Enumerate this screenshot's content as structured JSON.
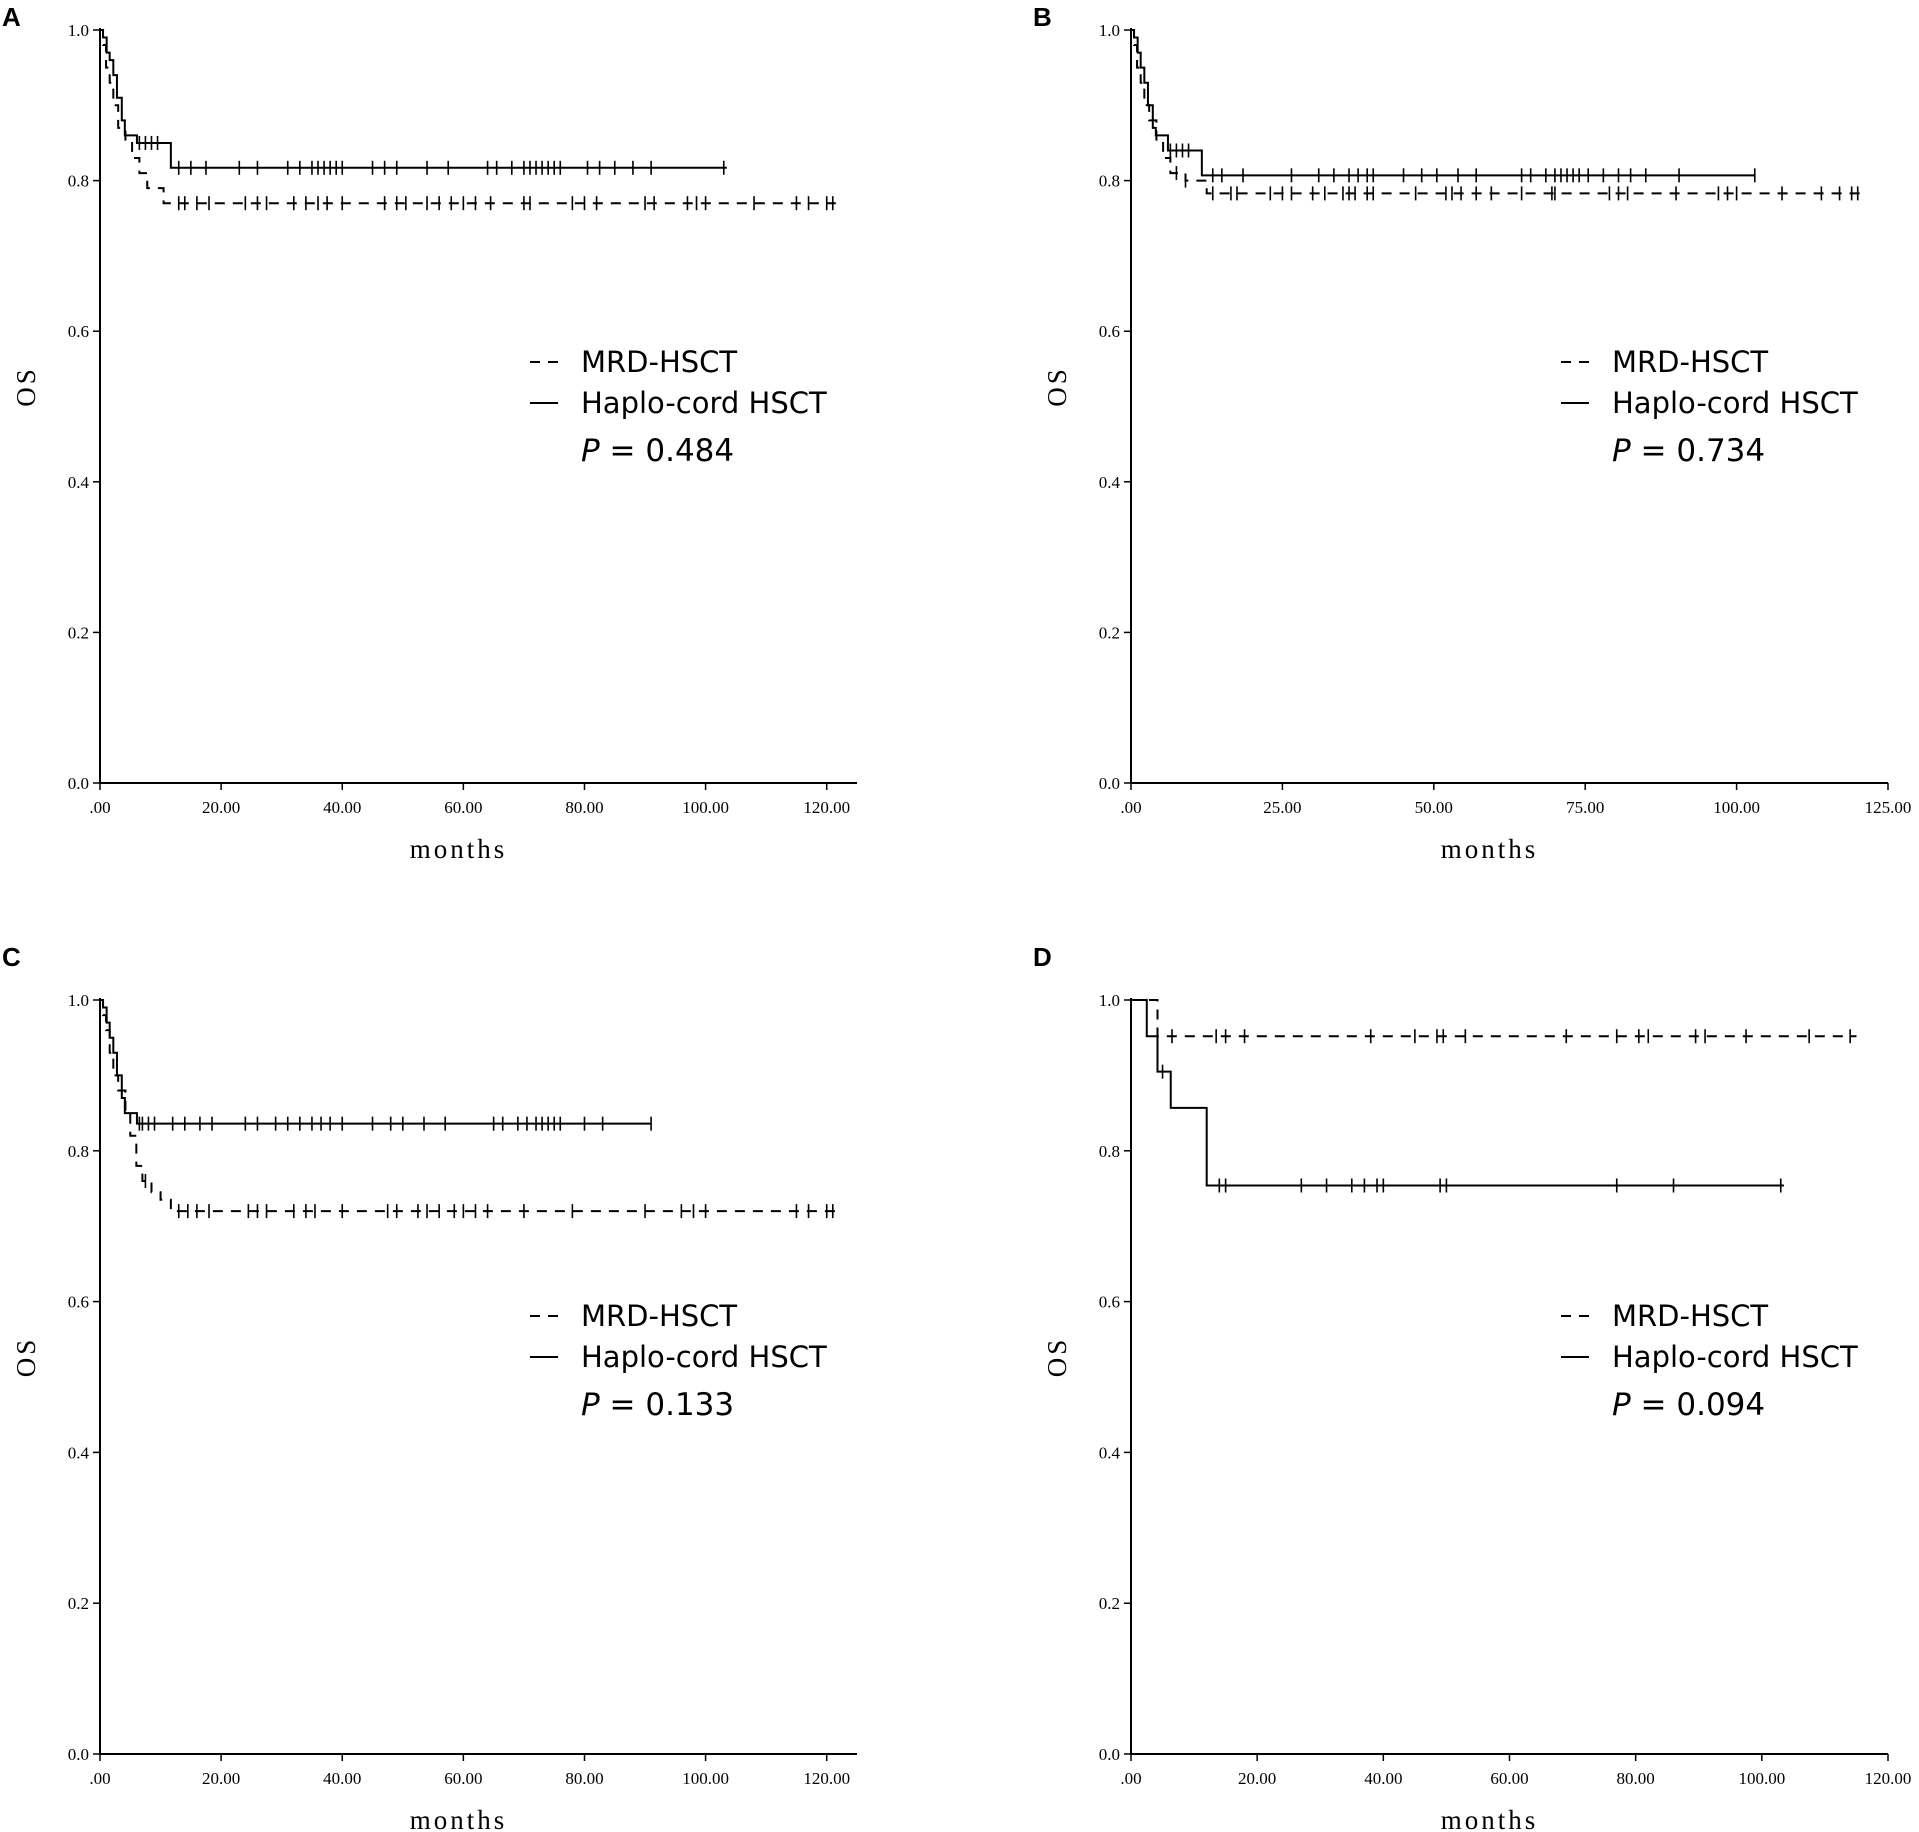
{
  "chart_data": [
    {
      "panel": "A",
      "type": "line",
      "ylabel": "OS",
      "xlabel": "months",
      "xlim": [
        0,
        125
      ],
      "ylim": [
        0,
        1
      ],
      "x_ticks": [
        0,
        20,
        40,
        60,
        80,
        100,
        120
      ],
      "x_tick_labels": [
        ".00",
        "20.00",
        "40.00",
        "60.00",
        "80.00",
        "100.00",
        "120.00"
      ],
      "y_ticks": [
        0,
        0.2,
        0.4,
        0.6,
        0.8,
        1.0
      ],
      "y_tick_labels": [
        "0.0",
        "0.2",
        "0.4",
        "0.6",
        "0.8",
        "1.0"
      ],
      "legend_position": "center-right",
      "p_label": "P",
      "p_value_text": " = 0.484",
      "series": [
        {
          "name": "MRD-HSCT",
          "style": "dashed",
          "steps": [
            [
              0,
              1.0
            ],
            [
              0.5,
              0.98
            ],
            [
              1,
              0.95
            ],
            [
              1.6,
              0.93
            ],
            [
              2.2,
              0.9
            ],
            [
              3,
              0.87
            ],
            [
              4.2,
              0.85
            ],
            [
              5.3,
              0.83
            ],
            [
              6.5,
              0.81
            ],
            [
              7.8,
              0.79
            ],
            [
              10.5,
              0.77
            ]
          ],
          "end": 121.5,
          "censored": [
            13,
            14,
            16,
            18,
            24,
            26,
            27.5,
            32,
            34,
            36,
            37.5,
            40,
            47,
            49,
            50.5,
            54,
            56,
            58,
            60,
            62,
            64.5,
            70,
            71,
            78,
            80,
            82,
            90,
            91.5,
            97,
            98.5,
            100,
            108,
            115,
            117,
            120,
            121
          ]
        },
        {
          "name": "Haplo-cord HSCT",
          "style": "solid",
          "steps": [
            [
              0,
              1.0
            ],
            [
              0.5,
              0.99
            ],
            [
              1.1,
              0.97
            ],
            [
              1.6,
              0.96
            ],
            [
              2.2,
              0.94
            ],
            [
              2.8,
              0.91
            ],
            [
              3.6,
              0.88
            ],
            [
              4.1,
              0.86
            ],
            [
              6.1,
              0.85
            ],
            [
              11.7,
              0.817
            ]
          ],
          "end": 103.5,
          "censored": [
            6.5,
            7.5,
            8.5,
            9.5,
            13,
            15,
            17.5,
            23,
            26,
            31,
            33,
            35,
            36,
            37,
            38,
            39,
            40,
            45,
            47,
            49,
            54,
            57.5,
            64,
            65.5,
            68,
            70,
            71,
            72,
            73,
            74,
            75,
            76,
            80.5,
            82.5,
            85,
            88,
            91,
            103
          ]
        }
      ]
    },
    {
      "panel": "B",
      "type": "line",
      "ylabel": "OS",
      "xlabel": "months",
      "xlim": [
        0,
        125
      ],
      "ylim": [
        0,
        1
      ],
      "x_ticks": [
        0,
        25,
        50,
        75,
        100,
        125
      ],
      "x_tick_labels": [
        ".00",
        "25.00",
        "50.00",
        "75.00",
        "100.00",
        "125.00"
      ],
      "y_ticks": [
        0,
        0.2,
        0.4,
        0.6,
        0.8,
        1.0
      ],
      "y_tick_labels": [
        "0.0",
        "0.2",
        "0.4",
        "0.6",
        "0.8",
        "1.0"
      ],
      "legend_position": "center-right",
      "p_label": "P",
      "p_value_text": " = 0.734",
      "series": [
        {
          "name": "MRD-HSCT",
          "style": "dashed",
          "steps": [
            [
              0,
              1.0
            ],
            [
              0.5,
              0.98
            ],
            [
              1,
              0.95
            ],
            [
              1.6,
              0.93
            ],
            [
              2.2,
              0.9
            ],
            [
              3,
              0.88
            ],
            [
              4.2,
              0.85
            ],
            [
              5.3,
              0.83
            ],
            [
              6.5,
              0.81
            ],
            [
              9,
              0.8
            ],
            [
              12.5,
              0.783
            ]
          ],
          "end": 121,
          "censored": [
            7.5,
            9,
            13.5,
            16.5,
            17.5,
            23,
            25,
            26.5,
            30,
            32,
            35,
            36,
            37,
            39,
            40,
            47,
            52,
            53,
            54.5,
            57,
            59.5,
            64.5,
            69.5,
            70,
            79,
            80.5,
            82,
            90,
            97,
            98.5,
            100,
            107.5,
            114,
            117,
            119,
            120
          ]
        },
        {
          "name": "Haplo-cord HSCT",
          "style": "solid",
          "steps": [
            [
              0,
              1.0
            ],
            [
              0.5,
              0.99
            ],
            [
              1.1,
              0.97
            ],
            [
              1.6,
              0.95
            ],
            [
              2.2,
              0.93
            ],
            [
              2.8,
              0.9
            ],
            [
              3.6,
              0.87
            ],
            [
              4.1,
              0.86
            ],
            [
              6.1,
              0.84
            ],
            [
              11.7,
              0.807
            ]
          ],
          "end": 103,
          "censored": [
            6.5,
            7.5,
            8.5,
            9.5,
            13.5,
            15,
            18.5,
            26.5,
            31,
            33.5,
            36,
            37.5,
            39,
            40,
            45,
            48,
            50.5,
            54,
            57,
            64.5,
            66,
            68.5,
            70,
            71,
            72,
            73,
            74,
            75.5,
            78,
            80.5,
            82.5,
            85,
            90.5,
            103
          ]
        }
      ]
    },
    {
      "panel": "C",
      "type": "line",
      "ylabel": "OS",
      "xlabel": "months",
      "xlim": [
        0,
        125
      ],
      "ylim": [
        0,
        1
      ],
      "x_ticks": [
        0,
        20,
        40,
        60,
        80,
        100,
        120
      ],
      "x_tick_labels": [
        ".00",
        "20.00",
        "40.00",
        "60.00",
        "80.00",
        "100.00",
        "120.00"
      ],
      "y_ticks": [
        0,
        0.2,
        0.4,
        0.6,
        0.8,
        1.0
      ],
      "y_tick_labels": [
        "0.0",
        "0.2",
        "0.4",
        "0.6",
        "0.8",
        "1.0"
      ],
      "legend_position": "center-right",
      "p_label": "P",
      "p_value_text": " = 0.133",
      "series": [
        {
          "name": "MRD-HSCT",
          "style": "dashed",
          "steps": [
            [
              0,
              1.0
            ],
            [
              0.5,
              0.98
            ],
            [
              1,
              0.96
            ],
            [
              1.6,
              0.93
            ],
            [
              2.2,
              0.9
            ],
            [
              3,
              0.88
            ],
            [
              4.2,
              0.85
            ],
            [
              5,
              0.82
            ],
            [
              6,
              0.78
            ],
            [
              7,
              0.76
            ],
            [
              8.5,
              0.745
            ],
            [
              10,
              0.735
            ],
            [
              11.7,
              0.72
            ]
          ],
          "end": 121.5,
          "censored": [
            7.5,
            13,
            14.5,
            16,
            18,
            24.5,
            26,
            27.5,
            32,
            34,
            35.5,
            40,
            47.5,
            49,
            52.5,
            54,
            56,
            58.5,
            60,
            62,
            64,
            70,
            78,
            90,
            96,
            98,
            100,
            115,
            117,
            120,
            121
          ]
        },
        {
          "name": "Haplo-cord HSCT",
          "style": "solid",
          "steps": [
            [
              0,
              1.0
            ],
            [
              0.5,
              0.99
            ],
            [
              1.1,
              0.97
            ],
            [
              1.6,
              0.95
            ],
            [
              2.2,
              0.93
            ],
            [
              2.8,
              0.9
            ],
            [
              3.6,
              0.87
            ],
            [
              4.1,
              0.85
            ],
            [
              6.1,
              0.836
            ]
          ],
          "end": 91,
          "censored": [
            6.5,
            7,
            8,
            9,
            12,
            14,
            16.5,
            18.5,
            24,
            26,
            29,
            31,
            33,
            35,
            36.5,
            38,
            40,
            45,
            48,
            50,
            53.5,
            57,
            65,
            66.5,
            69,
            70.5,
            72,
            73,
            74,
            75,
            76,
            80,
            83,
            91
          ]
        }
      ]
    },
    {
      "panel": "D",
      "type": "line",
      "ylabel": "OS",
      "xlabel": "months",
      "xlim": [
        0,
        120
      ],
      "ylim": [
        0,
        1
      ],
      "x_ticks": [
        0,
        20,
        40,
        60,
        80,
        100,
        120
      ],
      "x_tick_labels": [
        ".00",
        "20.00",
        "40.00",
        "60.00",
        "80.00",
        "100.00",
        "120.00"
      ],
      "y_ticks": [
        0,
        0.2,
        0.4,
        0.6,
        0.8,
        1.0
      ],
      "y_tick_labels": [
        "0.0",
        "0.2",
        "0.4",
        "0.6",
        "0.8",
        "1.0"
      ],
      "legend_position": "center-right",
      "p_label": "P",
      "p_value_text": " = 0.094",
      "series": [
        {
          "name": "MRD-HSCT",
          "style": "dashed",
          "steps": [
            [
              0,
              1.0
            ],
            [
              4.2,
              0.952
            ]
          ],
          "end": 115,
          "censored": [
            6.5,
            13.5,
            15,
            18,
            38,
            45,
            48.5,
            49.5,
            53,
            69,
            77,
            80.5,
            82,
            89.5,
            91,
            97.5,
            107.5,
            114
          ]
        },
        {
          "name": "Haplo-cord HSCT",
          "style": "solid",
          "steps": [
            [
              0,
              1.0
            ],
            [
              2.5,
              0.952
            ],
            [
              4.2,
              0.905
            ],
            [
              6.3,
              0.857
            ],
            [
              12,
              0.754
            ]
          ],
          "end": 103.5,
          "censored": [
            5,
            14,
            15,
            27,
            31,
            35,
            37,
            39,
            40,
            49,
            50,
            77,
            86,
            103
          ]
        }
      ]
    }
  ]
}
